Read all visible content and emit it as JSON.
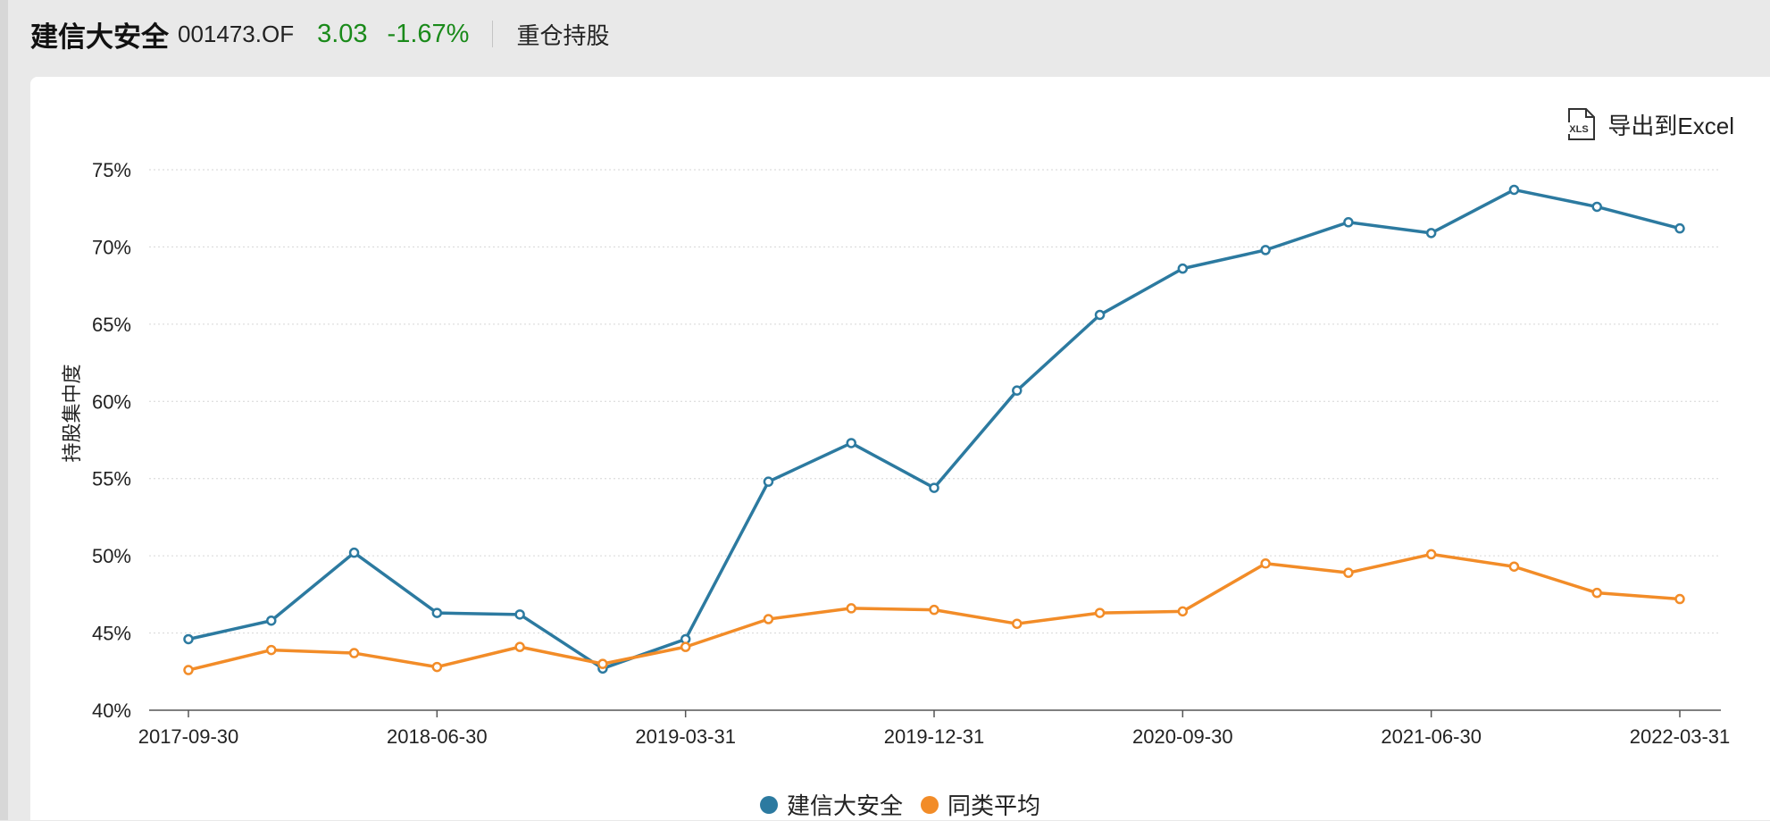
{
  "header": {
    "fund_name": "建信大安全",
    "fund_code": "001473.OF",
    "price": "3.03",
    "change": "-1.67%",
    "section": "重仓持股"
  },
  "toolbar": {
    "export_label": "导出到Excel",
    "export_icon_text": "XLS"
  },
  "colors": {
    "series_fund": "#2c7aa0",
    "series_avg": "#f28c28",
    "up_down": "#1a8a1a"
  },
  "chart_data": {
    "type": "line",
    "title": "",
    "xlabel": "",
    "ylabel": "持股集中度",
    "ylim": [
      40,
      75
    ],
    "yticks": [
      40,
      45,
      50,
      55,
      60,
      65,
      70,
      75
    ],
    "ytick_labels": [
      "40%",
      "45%",
      "50%",
      "55%",
      "60%",
      "65%",
      "70%",
      "75%"
    ],
    "x": [
      "2017-09-30",
      "2017-12-31",
      "2018-03-31",
      "2018-06-30",
      "2018-09-30",
      "2018-12-31",
      "2019-03-31",
      "2019-06-30",
      "2019-09-30",
      "2019-12-31",
      "2020-03-31",
      "2020-06-30",
      "2020-09-30",
      "2020-12-31",
      "2021-03-31",
      "2021-06-30",
      "2021-09-30",
      "2021-12-31",
      "2022-03-31"
    ],
    "xtick_labels": [
      "2017-09-30",
      "2018-06-30",
      "2019-03-31",
      "2019-12-31",
      "2020-09-30",
      "2021-06-30",
      "2022-03-31"
    ],
    "grid": true,
    "legend": "bottom-center",
    "series": [
      {
        "name": "建信大安全",
        "values": [
          44.6,
          45.8,
          50.2,
          46.3,
          46.2,
          42.7,
          44.6,
          54.8,
          57.3,
          54.4,
          60.7,
          65.6,
          68.6,
          69.8,
          71.6,
          70.9,
          73.7,
          72.6,
          71.2
        ]
      },
      {
        "name": "同类平均",
        "values": [
          42.6,
          43.9,
          43.7,
          42.8,
          44.1,
          43.0,
          44.1,
          45.9,
          46.6,
          46.5,
          45.6,
          46.3,
          46.4,
          49.5,
          48.9,
          50.1,
          49.3,
          47.6,
          47.2
        ]
      }
    ]
  }
}
